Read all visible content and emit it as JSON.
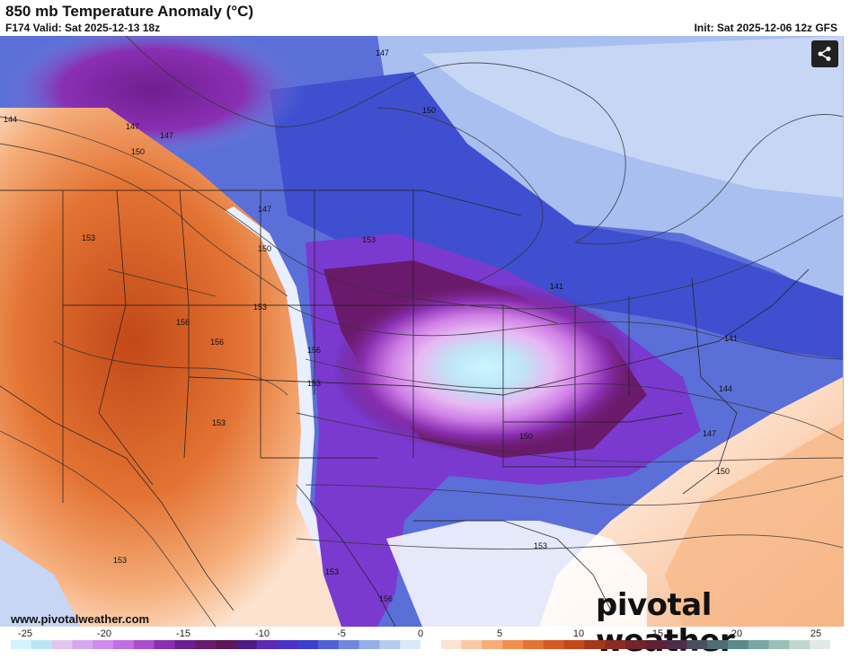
{
  "header": {
    "title": "850 mb Temperature Anomaly (°C)",
    "valid": "F174 Valid: Sat 2025-12-13 18z",
    "init": "Init: Sat 2025-12-06 12z GFS"
  },
  "footer": {
    "url": "www.pivotalweather.com",
    "brand": "pivotal weather"
  },
  "share_icon": "share-icon",
  "contour_labels": [
    "144",
    "147",
    "147",
    "150",
    "147",
    "150",
    "153",
    "156",
    "153",
    "156",
    "153",
    "150",
    "153",
    "156",
    "153",
    "141",
    "141",
    "144",
    "147",
    "150",
    "150",
    "153",
    "153",
    "153",
    "156"
  ],
  "colorbar": {
    "ticks": [
      "-25",
      "-20",
      "-15",
      "-10",
      "-5",
      "0",
      "5",
      "10",
      "15",
      "20",
      "25"
    ],
    "colors": [
      "#d0f5ff",
      "#b8e6f5",
      "#e2c6f2",
      "#d7a8ee",
      "#cf8cea",
      "#c06fe0",
      "#a94fcd",
      "#8a2fb3",
      "#6e1f8e",
      "#6a1a6a",
      "#5d1657",
      "#4f1a86",
      "#5b2ab6",
      "#4b32c9",
      "#3e3ed1",
      "#5060d5",
      "#6f88de",
      "#94aee8",
      "#b7cbf0",
      "#dce7f8",
      "#ffffff",
      "#fde3cf",
      "#f9c9a4",
      "#f5ad7a",
      "#f0904f",
      "#e37333",
      "#d45b22",
      "#c24818",
      "#a6361a",
      "#8c2b21",
      "#74242a",
      "#5e2235",
      "#4d2e4a",
      "#4a4f5e",
      "#4d6e73",
      "#5c8a89",
      "#78a6a0",
      "#9bbfb8",
      "#c2d6d0",
      "#e2e8e6"
    ]
  }
}
